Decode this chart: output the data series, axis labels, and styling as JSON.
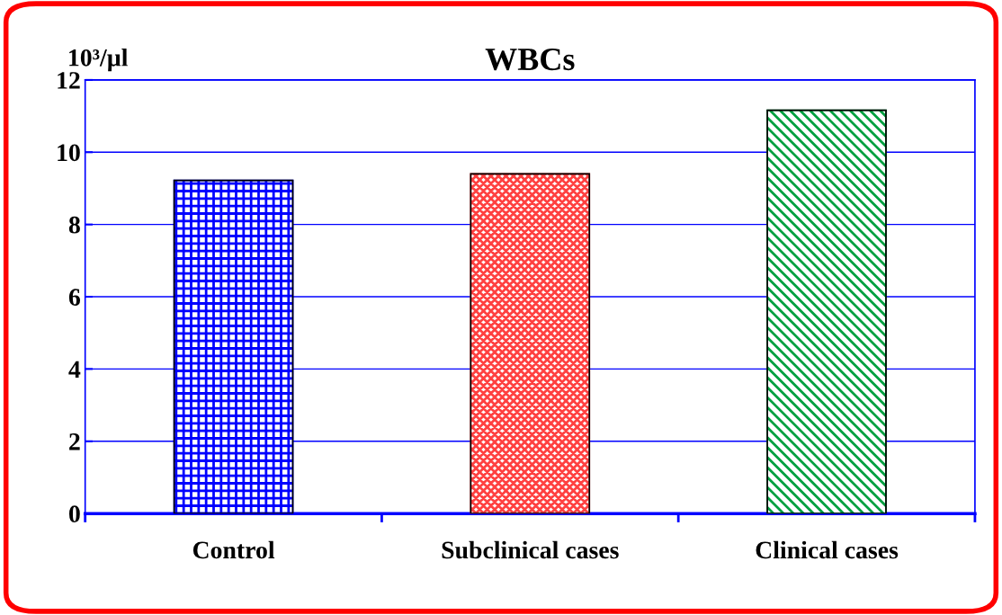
{
  "chart_data": {
    "type": "bar",
    "title": "WBCs",
    "ylabel": "10³/µl",
    "categories": [
      "Control",
      "Subclinical cases",
      "Clinical cases"
    ],
    "values": [
      9.22,
      9.4,
      11.16
    ],
    "colors": [
      "#0000ff",
      "#ff4040",
      "#00a040"
    ],
    "ylim": [
      0,
      12
    ],
    "yticks": [
      0,
      2,
      4,
      6,
      8,
      10,
      12
    ],
    "grid": "y",
    "legend": false
  }
}
